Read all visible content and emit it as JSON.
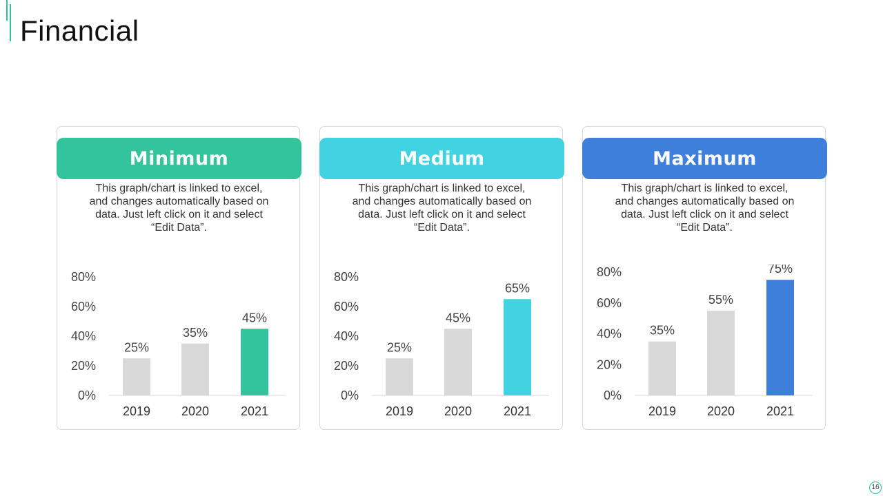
{
  "page": {
    "title": "Financial",
    "page_number": "16"
  },
  "cards": [
    {
      "title": "Minimum",
      "color": "#33c49c",
      "description": "This graph/chart is linked to excel, and changes automatically based on data. Just left click on it and select “Edit Data”."
    },
    {
      "title": "Medium",
      "color": "#42d3e0",
      "description": "This graph/chart is linked to excel, and changes automatically based on data. Just left click on it and select “Edit Data”."
    },
    {
      "title": "Maximum",
      "color": "#3f7fdc",
      "description": "This graph/chart is linked to excel, and changes automatically based on data. Just left click on it and select “Edit Data”."
    }
  ],
  "chart_data": [
    {
      "type": "bar",
      "categories": [
        "2019",
        "2020",
        "2021"
      ],
      "values": [
        25,
        35,
        45
      ],
      "data_labels": [
        "25%",
        "35%",
        "45%"
      ],
      "ylim": [
        0,
        80
      ],
      "yticks": [
        "0%",
        "20%",
        "40%",
        "60%",
        "80%"
      ],
      "bar_colors": [
        "#d9d9d9",
        "#d9d9d9",
        "#33c49c"
      ],
      "grid": false
    },
    {
      "type": "bar",
      "categories": [
        "2019",
        "2020",
        "2021"
      ],
      "values": [
        25,
        45,
        65
      ],
      "data_labels": [
        "25%",
        "45%",
        "65%"
      ],
      "ylim": [
        0,
        80
      ],
      "yticks": [
        "0%",
        "20%",
        "40%",
        "60%",
        "80%"
      ],
      "bar_colors": [
        "#d9d9d9",
        "#d9d9d9",
        "#42d3e0"
      ],
      "grid": false
    },
    {
      "type": "bar",
      "categories": [
        "2019",
        "2020",
        "2021"
      ],
      "values": [
        35,
        55,
        75
      ],
      "data_labels": [
        "35%",
        "55%",
        "75%"
      ],
      "ylim": [
        0,
        80
      ],
      "yticks": [
        "0%",
        "20%",
        "40%",
        "60%",
        "80%"
      ],
      "bar_colors": [
        "#d9d9d9",
        "#d9d9d9",
        "#3f7fdc"
      ],
      "grid": false
    }
  ]
}
